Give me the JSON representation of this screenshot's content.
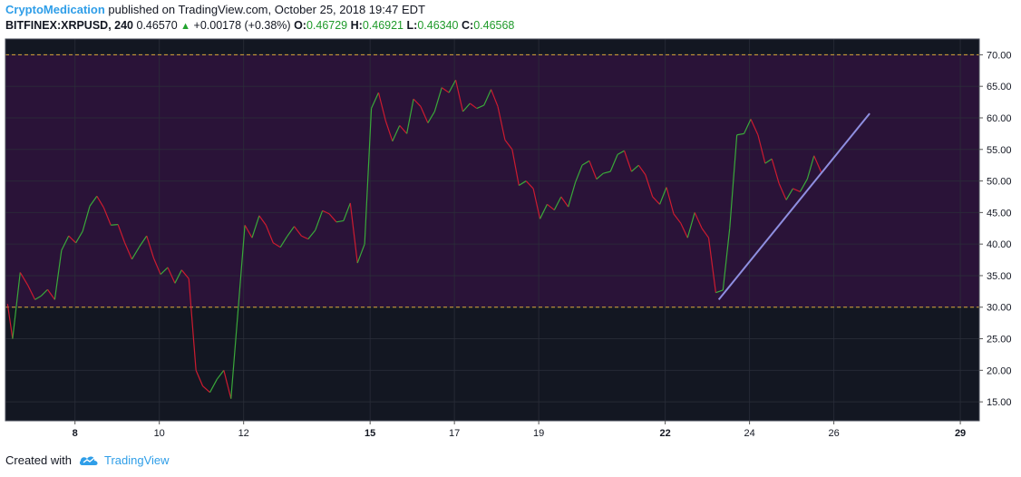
{
  "header": {
    "author": "CryptoMedication",
    "published_text": " published on TradingView.com, October 25, 2018 19:47 EDT",
    "symbol": "BITFINEX:XRPUSD, 240",
    "last": "0.46570",
    "change": "+0.00178 (+0.38%)",
    "open_label": "O:",
    "open": "0.46729",
    "high_label": "H:",
    "high": "0.46921",
    "low_label": "L:",
    "low": "0.46340",
    "close_label": "C:",
    "close": "0.46568"
  },
  "footer": {
    "created_with": "Created with",
    "brand": "TradingView"
  },
  "colors": {
    "background": "#131722",
    "zone": "#2a1338",
    "up": "#3aa83a",
    "down": "#cc1b30",
    "level_line": "#d9a73a",
    "trendline": "#8f8fe0",
    "grid": "#2a2e39",
    "axis_text": "#131722"
  },
  "chart_data": {
    "type": "line",
    "title": "",
    "indicator": "RSI",
    "ylim": [
      12,
      72.5
    ],
    "y_ticks": [
      "15.00",
      "20.00",
      "25.00",
      "30.00",
      "35.00",
      "40.00",
      "45.00",
      "50.00",
      "55.00",
      "60.00",
      "65.00",
      "70.00"
    ],
    "y_tick_values": [
      15,
      20,
      25,
      30,
      35,
      40,
      45,
      50,
      55,
      60,
      65,
      70
    ],
    "x_range": [
      6.35,
      29.45
    ],
    "x_ticks": [
      {
        "label": "8",
        "pos": 8,
        "bold": true
      },
      {
        "label": "10",
        "pos": 10,
        "bold": false
      },
      {
        "label": "12",
        "pos": 12,
        "bold": false
      },
      {
        "label": "15",
        "pos": 15,
        "bold": true
      },
      {
        "label": "17",
        "pos": 17,
        "bold": false
      },
      {
        "label": "19",
        "pos": 19,
        "bold": false
      },
      {
        "label": "22",
        "pos": 22,
        "bold": true
      },
      {
        "label": "24",
        "pos": 24,
        "bold": false
      },
      {
        "label": "26",
        "pos": 26,
        "bold": false
      },
      {
        "label": "29",
        "pos": 29,
        "bold": true
      }
    ],
    "zone": [
      30,
      70
    ],
    "levels": [
      30,
      70
    ],
    "series": [
      {
        "values": [
          [
            6.4,
            30.5
          ],
          [
            6.52,
            25
          ],
          [
            6.7,
            35.5
          ],
          [
            6.88,
            33.5
          ],
          [
            7.05,
            31.2
          ],
          [
            7.2,
            31.8
          ],
          [
            7.35,
            32.8
          ],
          [
            7.52,
            31.2
          ],
          [
            7.68,
            39
          ],
          [
            7.85,
            41.3
          ],
          [
            8.02,
            40.2
          ],
          [
            8.18,
            42
          ],
          [
            8.35,
            46
          ],
          [
            8.52,
            47.6
          ],
          [
            8.68,
            45.8
          ],
          [
            8.85,
            43
          ],
          [
            9.02,
            43.1
          ],
          [
            9.18,
            40.2
          ],
          [
            9.35,
            37.6
          ],
          [
            9.52,
            39.5
          ],
          [
            9.7,
            41.3
          ],
          [
            9.87,
            37.7
          ],
          [
            10.03,
            35.2
          ],
          [
            10.2,
            36.3
          ],
          [
            10.37,
            33.8
          ],
          [
            10.53,
            35.9
          ],
          [
            10.7,
            34.5
          ],
          [
            10.87,
            20
          ],
          [
            11.03,
            17.5
          ],
          [
            11.2,
            16.5
          ],
          [
            11.37,
            18.6
          ],
          [
            11.53,
            20
          ],
          [
            11.7,
            15.5
          ],
          [
            12.03,
            43
          ],
          [
            12.2,
            41
          ],
          [
            12.37,
            44.5
          ],
          [
            12.53,
            43
          ],
          [
            12.7,
            40.2
          ],
          [
            12.87,
            39.5
          ],
          [
            13.03,
            41.2
          ],
          [
            13.2,
            42.8
          ],
          [
            13.37,
            41.3
          ],
          [
            13.53,
            40.8
          ],
          [
            13.7,
            42.2
          ],
          [
            13.87,
            45.3
          ],
          [
            14.03,
            44.8
          ],
          [
            14.2,
            43.5
          ],
          [
            14.37,
            43.7
          ],
          [
            14.53,
            46.5
          ],
          [
            14.7,
            37
          ],
          [
            14.87,
            40
          ],
          [
            15.03,
            61.5
          ],
          [
            15.2,
            64
          ],
          [
            15.37,
            59.5
          ],
          [
            15.53,
            56.3
          ],
          [
            15.7,
            58.8
          ],
          [
            15.87,
            57.5
          ],
          [
            16.03,
            63
          ],
          [
            16.2,
            61.8
          ],
          [
            16.37,
            59.2
          ],
          [
            16.53,
            61
          ],
          [
            16.7,
            64.8
          ],
          [
            16.87,
            64
          ],
          [
            17.03,
            66
          ],
          [
            17.2,
            61
          ],
          [
            17.37,
            62.3
          ],
          [
            17.53,
            61.5
          ],
          [
            17.7,
            62
          ],
          [
            17.87,
            64.5
          ],
          [
            18.03,
            61.8
          ],
          [
            18.2,
            56.5
          ],
          [
            18.37,
            55
          ],
          [
            18.53,
            49.3
          ],
          [
            18.7,
            50
          ],
          [
            18.87,
            48.8
          ],
          [
            19.03,
            44
          ],
          [
            19.2,
            46.3
          ],
          [
            19.37,
            45.4
          ],
          [
            19.53,
            47.5
          ],
          [
            19.7,
            45.9
          ],
          [
            19.87,
            49.8
          ],
          [
            20.03,
            52.5
          ],
          [
            20.2,
            53.2
          ],
          [
            20.37,
            50.3
          ],
          [
            20.53,
            51.2
          ],
          [
            20.7,
            51.5
          ],
          [
            20.87,
            54.2
          ],
          [
            21.03,
            54.8
          ],
          [
            21.2,
            51.5
          ],
          [
            21.37,
            52.5
          ],
          [
            21.53,
            51
          ],
          [
            21.7,
            47.5
          ],
          [
            21.87,
            46.3
          ],
          [
            22.03,
            49
          ],
          [
            22.2,
            44.8
          ],
          [
            22.37,
            43.3
          ],
          [
            22.53,
            41
          ],
          [
            22.7,
            45
          ],
          [
            22.87,
            42.5
          ],
          [
            23.03,
            41
          ],
          [
            23.2,
            32.3
          ],
          [
            23.37,
            32.7
          ],
          [
            23.53,
            42.5
          ],
          [
            23.7,
            57.3
          ],
          [
            23.87,
            57.5
          ],
          [
            24.03,
            59.8
          ],
          [
            24.2,
            57.3
          ],
          [
            24.37,
            52.8
          ],
          [
            24.53,
            53.5
          ],
          [
            24.7,
            49.6
          ],
          [
            24.87,
            47
          ],
          [
            25.03,
            48.8
          ],
          [
            25.2,
            48.3
          ],
          [
            25.37,
            50.3
          ],
          [
            25.53,
            54
          ],
          [
            25.7,
            51.4
          ]
        ]
      }
    ],
    "trendline": [
      [
        23.27,
        31.2
      ],
      [
        26.85,
        60.7
      ]
    ]
  }
}
